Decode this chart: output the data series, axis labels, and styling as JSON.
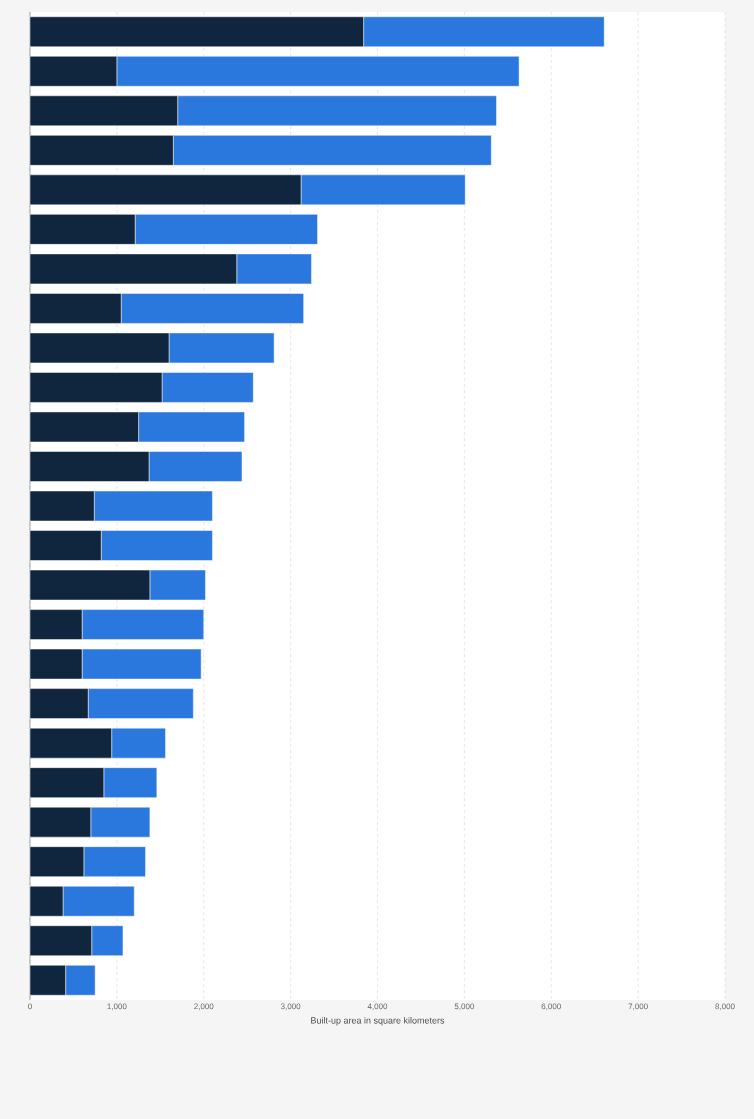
{
  "chart_data": {
    "type": "bar",
    "orientation": "horizontal",
    "stacked": true,
    "categories": [
      null,
      null,
      null,
      null,
      null,
      null,
      null,
      null,
      null,
      null,
      null,
      null,
      null,
      null,
      null,
      null,
      null,
      null,
      null,
      null,
      null,
      null,
      null,
      null,
      null
    ],
    "series": [
      {
        "color": "#10263f",
        "values": [
          3840,
          1000,
          1700,
          1650,
          3120,
          1210,
          2380,
          1050,
          1600,
          1520,
          1250,
          1370,
          740,
          820,
          1380,
          600,
          600,
          670,
          940,
          850,
          700,
          620,
          380,
          710,
          410
        ]
      },
      {
        "color": "#2a77de",
        "values": [
          2770,
          4630,
          3670,
          3660,
          1890,
          2100,
          860,
          2100,
          1210,
          1050,
          1220,
          1070,
          1360,
          1280,
          640,
          1400,
          1370,
          1210,
          620,
          610,
          680,
          710,
          820,
          360,
          340
        ]
      }
    ],
    "xlim": [
      0,
      8000
    ],
    "xticks": [
      0,
      {
        "value": 1000,
        "label": "1,000"
      },
      {
        "value": 2000,
        "label": "2,000"
      },
      {
        "value": 3000,
        "label": "3,000"
      },
      {
        "value": 4000,
        "label": "4,000"
      },
      {
        "value": 5000,
        "label": "5,000"
      },
      {
        "value": 6000,
        "label": "6,000"
      },
      {
        "value": 7000,
        "label": "7,000"
      },
      {
        "value": 8000,
        "label": "8,000"
      }
    ],
    "xlabel": "Built-up area in square kilometers",
    "grid": "x"
  }
}
